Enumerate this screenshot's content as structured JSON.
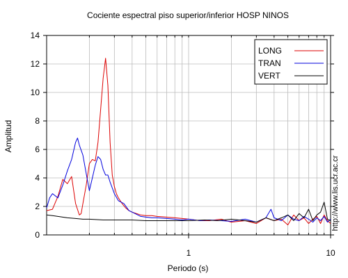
{
  "chart_data": {
    "type": "line",
    "title": "Cociente espectral piso superior/inferior  HOSP NINOS",
    "xlabel": "Periodo (s)",
    "ylabel": "Amplitud",
    "x_scale": "log",
    "xlim": [
      0.1,
      10
    ],
    "ylim": [
      0,
      14
    ],
    "grid": true,
    "legend_position": "top-right",
    "x_ticks": [
      {
        "value": 1,
        "label": "1"
      },
      {
        "value": 10,
        "label": "10"
      }
    ],
    "y_ticks": [
      0,
      2,
      4,
      6,
      8,
      10,
      12,
      14
    ],
    "annotation": "http://www.lis.ucr.ac.cr",
    "series": [
      {
        "name": "LONG",
        "color": "#dd0000",
        "x": [
          0.1,
          0.11,
          0.12,
          0.13,
          0.14,
          0.15,
          0.16,
          0.17,
          0.175,
          0.18,
          0.19,
          0.2,
          0.21,
          0.22,
          0.23,
          0.24,
          0.25,
          0.26,
          0.27,
          0.28,
          0.29,
          0.3,
          0.31,
          0.32,
          0.34,
          0.36,
          0.38,
          0.4,
          0.43,
          0.46,
          0.5,
          0.55,
          0.6,
          0.7,
          0.8,
          0.9,
          1.0,
          1.2,
          1.4,
          1.7,
          2.0,
          2.5,
          3.0,
          3.5,
          4.0,
          4.5,
          5.0,
          5.5,
          6.0,
          6.5,
          7.0,
          7.5,
          8.0,
          8.5,
          9.0,
          9.5,
          10.0
        ],
        "y": [
          1.7,
          1.8,
          2.7,
          3.9,
          3.6,
          4.1,
          2.2,
          1.4,
          1.5,
          2.2,
          3.5,
          5.0,
          5.3,
          5.2,
          6.5,
          8.8,
          11.0,
          12.4,
          10.5,
          6.5,
          4.2,
          3.4,
          2.9,
          2.6,
          2.2,
          1.9,
          1.7,
          1.6,
          1.5,
          1.4,
          1.35,
          1.35,
          1.3,
          1.25,
          1.2,
          1.15,
          1.1,
          1.0,
          1.0,
          1.1,
          0.9,
          1.0,
          0.8,
          1.2,
          1.0,
          1.1,
          0.7,
          1.4,
          1.0,
          1.2,
          0.8,
          1.1,
          1.3,
          0.8,
          1.4,
          1.0,
          0.8
        ]
      },
      {
        "name": "TRAN",
        "color": "#0000dd",
        "x": [
          0.1,
          0.105,
          0.11,
          0.12,
          0.13,
          0.14,
          0.15,
          0.16,
          0.165,
          0.17,
          0.18,
          0.19,
          0.2,
          0.21,
          0.22,
          0.23,
          0.24,
          0.25,
          0.26,
          0.27,
          0.28,
          0.3,
          0.32,
          0.35,
          0.38,
          0.42,
          0.46,
          0.5,
          0.55,
          0.6,
          0.7,
          0.8,
          0.9,
          1.0,
          1.2,
          1.4,
          1.7,
          2.0,
          2.5,
          3.0,
          3.5,
          3.8,
          4.0,
          4.5,
          5.0,
          5.5,
          6.0,
          6.5,
          7.0,
          7.5,
          8.0,
          8.5,
          9.0,
          9.5,
          10.0
        ],
        "y": [
          1.9,
          2.6,
          2.9,
          2.6,
          3.5,
          4.5,
          5.3,
          6.5,
          6.8,
          6.3,
          5.6,
          4.3,
          3.1,
          4.0,
          4.9,
          5.5,
          5.3,
          4.6,
          4.2,
          4.2,
          3.7,
          2.9,
          2.4,
          2.2,
          1.7,
          1.5,
          1.3,
          1.25,
          1.2,
          1.2,
          1.15,
          1.1,
          1.05,
          1.1,
          1.0,
          1.05,
          1.0,
          0.95,
          1.1,
          0.9,
          1.2,
          1.8,
          1.2,
          1.0,
          1.4,
          1.1,
          1.0,
          1.3,
          1.1,
          0.9,
          1.2,
          1.0,
          1.3,
          0.9,
          1.1
        ]
      },
      {
        "name": "VERT",
        "color": "#000000",
        "x": [
          0.1,
          0.11,
          0.12,
          0.14,
          0.16,
          0.18,
          0.2,
          0.25,
          0.3,
          0.4,
          0.5,
          0.6,
          0.8,
          1.0,
          1.3,
          1.6,
          2.0,
          2.5,
          3.0,
          3.5,
          4.0,
          4.5,
          5.0,
          5.5,
          6.0,
          6.5,
          7.0,
          7.5,
          8.0,
          8.5,
          9.0,
          9.5,
          10.0
        ],
        "y": [
          1.4,
          1.35,
          1.3,
          1.2,
          1.15,
          1.1,
          1.1,
          1.05,
          1.05,
          1.05,
          1.0,
          1.0,
          1.0,
          1.0,
          1.05,
          1.0,
          1.1,
          1.0,
          0.9,
          1.2,
          1.0,
          1.2,
          1.4,
          1.0,
          1.5,
          1.2,
          1.8,
          1.0,
          1.4,
          1.6,
          2.3,
          1.1,
          1.0
        ]
      }
    ]
  }
}
